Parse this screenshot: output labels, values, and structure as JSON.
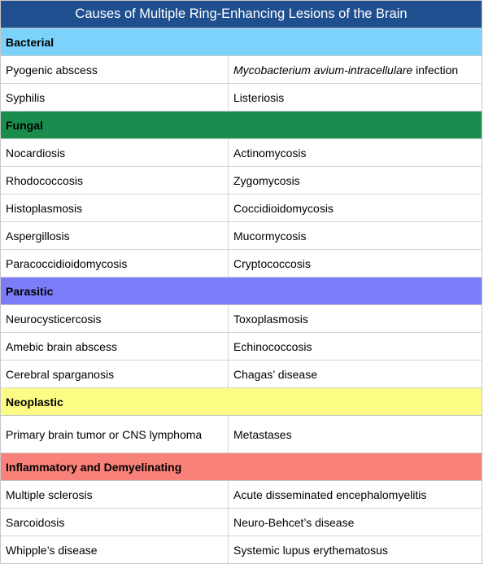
{
  "title": "Causes of Multiple Ring-Enhancing Lesions of the Brain",
  "sections": [
    {
      "name": "Bacterial",
      "color": "#7bd3fb",
      "rows": [
        {
          "left": "Pyogenic abscess",
          "right_italic": "Mycobacterium avium-intracellulare",
          "right": " infection"
        },
        {
          "left": "Syphilis",
          "right": "Listeriosis"
        }
      ]
    },
    {
      "name": "Fungal",
      "color": "#1a8c4e",
      "rows": [
        {
          "left": "Nocardiosis",
          "right": "Actinomycosis"
        },
        {
          "left": "Rhodococcosis",
          "right": "Zygomycosis"
        },
        {
          "left": "Histoplasmosis",
          "right": "Coccidioidomycosis"
        },
        {
          "left": "Aspergillosis",
          "right": "Mucormycosis"
        },
        {
          "left": "Paracoccidioidomycosis",
          "right": "Cryptococcosis"
        }
      ]
    },
    {
      "name": "Parasitic",
      "color": "#7b7cf8",
      "rows": [
        {
          "left": "Neurocysticercosis",
          "right": "Toxoplasmosis"
        },
        {
          "left": "Amebic brain abscess",
          "right": "Echinococcosis"
        },
        {
          "left": "Cerebral sparganosis",
          "right": "Chagas’ disease"
        }
      ]
    },
    {
      "name": "Neoplastic",
      "color": "#fcfc84",
      "rows": [
        {
          "left": "Primary brain tumor or CNS lymphoma",
          "right": "Metastases"
        }
      ]
    },
    {
      "name": "Inflammatory and Demyelinating",
      "color": "#f8827a",
      "rows": [
        {
          "left": "Multiple sclerosis",
          "right": "Acute disseminated encephalomyelitis"
        },
        {
          "left": "Sarcoidosis",
          "right": "Neuro-Behcet’s disease"
        },
        {
          "left": "Whipple’s disease",
          "right": "Systemic lupus erythematosus"
        }
      ]
    }
  ]
}
